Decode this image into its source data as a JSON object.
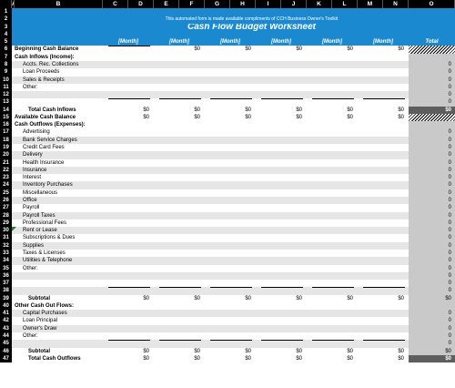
{
  "columns": [
    "A",
    "B",
    "C",
    "D",
    "E",
    "F",
    "G",
    "H",
    "I",
    "J",
    "K",
    "L",
    "M",
    "N",
    "O"
  ],
  "banner": "This automated form is made available compliments of CCH Business Owner's Toolkit",
  "title": "Cash Flow Budget Worksheet",
  "month_label": "[Month]",
  "total_label": "Total",
  "rows": [
    {
      "n": "1",
      "type": "blue"
    },
    {
      "n": "2",
      "type": "banner"
    },
    {
      "n": "3",
      "type": "title"
    },
    {
      "n": "4",
      "type": "blue"
    },
    {
      "n": "5",
      "type": "months"
    },
    {
      "n": "6",
      "label": "Beginning Cash Balance",
      "style": "bold",
      "vals": [
        "",
        "$0",
        "$0",
        "$0",
        "$0",
        "$0"
      ],
      "total": "hatch",
      "uline": true
    },
    {
      "n": "7",
      "label": "Cash Inflows (Income):",
      "style": "bold",
      "vals": [
        "",
        "",
        "",
        "",
        "",
        ""
      ],
      "total": ""
    },
    {
      "n": "8",
      "label": "Accts. Rec. Collections",
      "style": "ind",
      "vals": [
        "",
        "",
        "",
        "",
        "",
        ""
      ],
      "total": "0",
      "zebra": true
    },
    {
      "n": "9",
      "label": "Loan Proceeds",
      "style": "ind",
      "vals": [
        "",
        "",
        "",
        "",
        "",
        ""
      ],
      "total": "0"
    },
    {
      "n": "10",
      "label": "Sales & Receipts",
      "style": "ind",
      "vals": [
        "",
        "",
        "",
        "",
        "",
        ""
      ],
      "total": "0",
      "zebra": true
    },
    {
      "n": "11",
      "label": "Other:",
      "style": "ind",
      "vals": [
        "",
        "",
        "",
        "",
        "",
        ""
      ],
      "total": "0"
    },
    {
      "n": "12",
      "label": "",
      "style": "ind",
      "vals": [
        "",
        "",
        "",
        "",
        "",
        ""
      ],
      "total": "0",
      "zebra": true
    },
    {
      "n": "13",
      "label": "",
      "style": "ind",
      "vals": [
        "",
        "",
        "",
        "",
        "",
        ""
      ],
      "total": "0",
      "uline": true
    },
    {
      "n": "14",
      "label": "Total Cash Inflows",
      "style": "sub",
      "vals": [
        "$0",
        "$0",
        "$0",
        "$0",
        "$0",
        "$0"
      ],
      "total": "$0",
      "totdark": true,
      "uline": true
    },
    {
      "n": "15",
      "label": "Available Cash Balance",
      "style": "bold",
      "vals": [
        "$0",
        "$0",
        "$0",
        "$0",
        "$0",
        "$0"
      ],
      "total": "hatch",
      "uline": true
    },
    {
      "n": "16",
      "label": "Cash Outflows (Expenses):",
      "style": "bold",
      "vals": [
        "",
        "",
        "",
        "",
        "",
        ""
      ],
      "total": ""
    },
    {
      "n": "17",
      "label": "Advertising",
      "style": "ind",
      "vals": [
        "",
        "",
        "",
        "",
        "",
        ""
      ],
      "total": "0"
    },
    {
      "n": "18",
      "label": "Bank Service Charges",
      "style": "ind",
      "vals": [
        "",
        "",
        "",
        "",
        "",
        ""
      ],
      "total": "0",
      "zebra": true
    },
    {
      "n": "19",
      "label": "Credit Card Fees",
      "style": "ind",
      "vals": [
        "",
        "",
        "",
        "",
        "",
        ""
      ],
      "total": "0"
    },
    {
      "n": "20",
      "label": "Delivery",
      "style": "ind",
      "vals": [
        "",
        "",
        "",
        "",
        "",
        ""
      ],
      "total": "0",
      "zebra": true
    },
    {
      "n": "21",
      "label": "Health Insurance",
      "style": "ind",
      "vals": [
        "",
        "",
        "",
        "",
        "",
        ""
      ],
      "total": "0"
    },
    {
      "n": "22",
      "label": "Insurance",
      "style": "ind",
      "vals": [
        "",
        "",
        "",
        "",
        "",
        ""
      ],
      "total": "0",
      "zebra": true
    },
    {
      "n": "23",
      "label": "Interest",
      "style": "ind",
      "vals": [
        "",
        "",
        "",
        "",
        "",
        ""
      ],
      "total": "0"
    },
    {
      "n": "24",
      "label": "Inventory Purchases",
      "style": "ind",
      "vals": [
        "",
        "",
        "",
        "",
        "",
        ""
      ],
      "total": "0",
      "zebra": true
    },
    {
      "n": "25",
      "label": "Miscellaneous",
      "style": "ind",
      "vals": [
        "",
        "",
        "",
        "",
        "",
        ""
      ],
      "total": "0"
    },
    {
      "n": "26",
      "label": "Office",
      "style": "ind",
      "vals": [
        "",
        "",
        "",
        "",
        "",
        ""
      ],
      "total": "0",
      "zebra": true
    },
    {
      "n": "27",
      "label": "Payroll",
      "style": "ind",
      "vals": [
        "",
        "",
        "",
        "",
        "",
        ""
      ],
      "total": "0"
    },
    {
      "n": "28",
      "label": "Payroll Taxes",
      "style": "ind",
      "vals": [
        "",
        "",
        "",
        "",
        "",
        ""
      ],
      "total": "0",
      "zebra": true
    },
    {
      "n": "29",
      "label": "Professional Fees",
      "style": "ind",
      "vals": [
        "",
        "",
        "",
        "",
        "",
        ""
      ],
      "total": "0"
    },
    {
      "n": "30",
      "label": "Rent or Lease",
      "style": "ind",
      "vals": [
        "",
        "",
        "",
        "",
        "",
        ""
      ],
      "total": "0",
      "zebra": true,
      "mark": true
    },
    {
      "n": "31",
      "label": "Subscriptions & Dues",
      "style": "ind",
      "vals": [
        "",
        "",
        "",
        "",
        "",
        ""
      ],
      "total": "0"
    },
    {
      "n": "32",
      "label": "Supplies",
      "style": "ind",
      "vals": [
        "",
        "",
        "",
        "",
        "",
        ""
      ],
      "total": "0",
      "zebra": true
    },
    {
      "n": "33",
      "label": "Taxes & Licenses",
      "style": "ind",
      "vals": [
        "",
        "",
        "",
        "",
        "",
        ""
      ],
      "total": "0"
    },
    {
      "n": "34",
      "label": "Utilities & Telephone",
      "style": "ind",
      "vals": [
        "",
        "",
        "",
        "",
        "",
        ""
      ],
      "total": "0",
      "zebra": true
    },
    {
      "n": "35",
      "label": "Other:",
      "style": "ind",
      "vals": [
        "",
        "",
        "",
        "",
        "",
        ""
      ],
      "total": "0"
    },
    {
      "n": "36",
      "label": "",
      "style": "ind",
      "vals": [
        "",
        "",
        "",
        "",
        "",
        ""
      ],
      "total": "0",
      "zebra": true
    },
    {
      "n": "37",
      "label": "",
      "style": "ind",
      "vals": [
        "",
        "",
        "",
        "",
        "",
        ""
      ],
      "total": "0"
    },
    {
      "n": "38",
      "label": "",
      "style": "ind",
      "vals": [
        "",
        "",
        "",
        "",
        "",
        ""
      ],
      "total": "0",
      "zebra": true,
      "uline": true
    },
    {
      "n": "39",
      "label": "Subtotal",
      "style": "sub",
      "vals": [
        "$0",
        "$0",
        "$0",
        "$0",
        "$0",
        "$0"
      ],
      "total": "$0",
      "uline": true
    },
    {
      "n": "40",
      "label": "Other Cash Out Flows:",
      "style": "bold",
      "vals": [
        "",
        "",
        "",
        "",
        "",
        ""
      ],
      "total": ""
    },
    {
      "n": "41",
      "label": "Capital Purchases",
      "style": "ind",
      "vals": [
        "",
        "",
        "",
        "",
        "",
        ""
      ],
      "total": "0",
      "zebra": true
    },
    {
      "n": "42",
      "label": "Loan Principal",
      "style": "ind",
      "vals": [
        "",
        "",
        "",
        "",
        "",
        ""
      ],
      "total": "0"
    },
    {
      "n": "43",
      "label": "Owner's Draw",
      "style": "ind",
      "vals": [
        "",
        "",
        "",
        "",
        "",
        ""
      ],
      "total": "0",
      "zebra": true
    },
    {
      "n": "44",
      "label": "Other:",
      "style": "ind",
      "vals": [
        "",
        "",
        "",
        "",
        "",
        ""
      ],
      "total": "0"
    },
    {
      "n": "45",
      "label": "",
      "style": "ind",
      "vals": [
        "",
        "",
        "",
        "",
        "",
        ""
      ],
      "total": "0",
      "zebra": true,
      "uline": true
    },
    {
      "n": "46",
      "label": "Subtotal",
      "style": "sub",
      "vals": [
        "$0",
        "$0",
        "$0",
        "$0",
        "$0",
        "$0"
      ],
      "total": "$0",
      "uline": true
    },
    {
      "n": "47",
      "label": "Total Cash Outflows",
      "style": "sub",
      "vals": [
        "$0",
        "$0",
        "$0",
        "$0",
        "$0",
        "$0"
      ],
      "total": "$0",
      "totdark": true,
      "uline": true
    }
  ]
}
